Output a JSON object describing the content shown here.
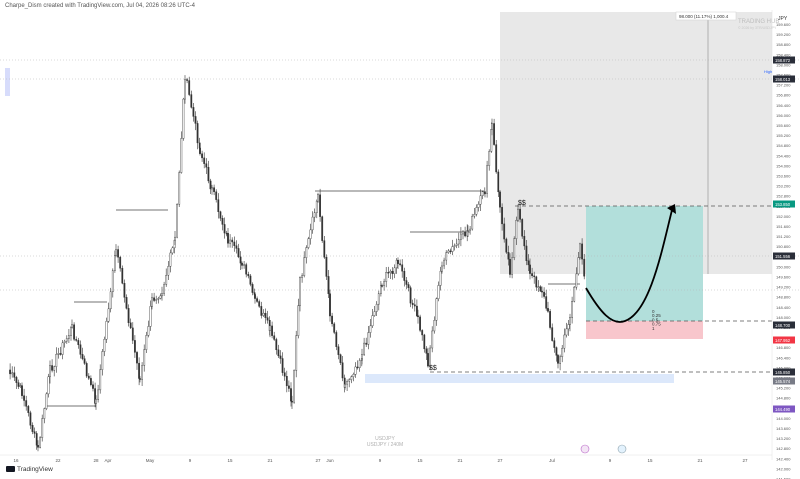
{
  "header": {
    "title": "Charpe_Dism created with TradingView.com, Jul 04, 2026 08:26 UTC-4"
  },
  "branding": {
    "logo_text": "TradingView"
  },
  "watermark": {
    "line1": "USDJPY",
    "line2": "USDJPY / 240M"
  },
  "overlay": {
    "info_box": "98.000 (11.17%) 1,000.4",
    "ghost_title": "TRADING HUB",
    "ghost_sub": "© 2026 by 3TR/USDJPY"
  },
  "price_axis": {
    "currency": "JPY",
    "labels": [
      "159.600",
      "159.200",
      "158.800",
      "158.400",
      "158.000",
      "157.600",
      "157.200",
      "156.800",
      "156.400",
      "156.000",
      "155.600",
      "155.200",
      "154.800",
      "154.400",
      "154.000",
      "153.600",
      "153.200",
      "152.800",
      "152.400",
      "152.000",
      "151.600",
      "151.200",
      "150.800",
      "150.400",
      "150.000",
      "149.600",
      "149.200",
      "148.800",
      "148.400",
      "148.000",
      "147.600",
      "147.200",
      "146.800",
      "146.400",
      "146.000",
      "145.600",
      "145.200",
      "144.800",
      "144.400",
      "144.000",
      "143.600",
      "143.200",
      "142.800",
      "142.400",
      "142.000",
      "141.600"
    ],
    "badges": [
      {
        "text": "158.872",
        "color": "#2a2e39"
      },
      {
        "text": "158.013",
        "color": "#2a2e39"
      },
      {
        "text": "153.850",
        "color": "#089981"
      },
      {
        "text": "151.556",
        "color": "#2a2e39"
      },
      {
        "text": "148.700",
        "color": "#2a2e39"
      },
      {
        "text": "147.952",
        "color": "#f23645"
      },
      {
        "text": "145.850",
        "color": "#2a2e39"
      },
      {
        "text": "145.574",
        "color": "#787b86"
      },
      {
        "text": "144.490",
        "color": "#7e57c2"
      }
    ],
    "high_label": "High"
  },
  "time_axis": {
    "labels": [
      "16",
      "22",
      "28",
      "Apr",
      "May",
      "9",
      "15",
      "21",
      "27",
      "Jun",
      "9",
      "15",
      "21",
      "27",
      "Jul",
      "9",
      "15",
      "21",
      "27"
    ]
  },
  "annotations": {
    "liq_top": "$$",
    "liq_bottom": "$$",
    "fib": [
      "0",
      "0.25",
      "0.5",
      "0.75",
      "1"
    ]
  },
  "colors": {
    "target_zone": "#b2dfdb",
    "stop_zone": "#f8c6cc",
    "demand_zone": "#dce8fb",
    "gray_zone": "#e6e6e6",
    "candle": "#333333",
    "arrow": "#000000",
    "side_marker": "#d7dcfb"
  }
}
